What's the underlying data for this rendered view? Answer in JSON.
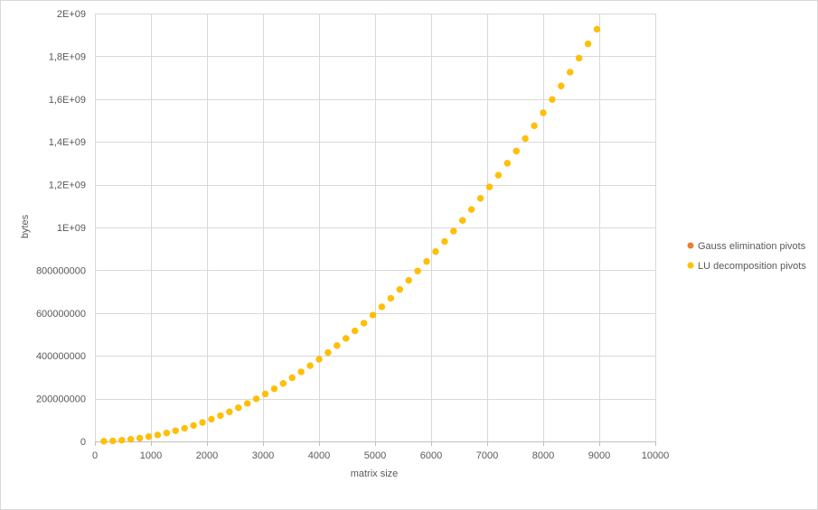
{
  "chart_data": {
    "type": "scatter",
    "title": "",
    "xlabel": "matrix size",
    "ylabel": "bytes",
    "xlim": [
      0,
      10000
    ],
    "ylim": [
      0,
      2000000000
    ],
    "x_ticks": [
      0,
      1000,
      2000,
      3000,
      4000,
      5000,
      6000,
      7000,
      8000,
      9000,
      10000
    ],
    "x_tick_labels": [
      "0",
      "1000",
      "2000",
      "3000",
      "4000",
      "5000",
      "6000",
      "7000",
      "8000",
      "9000",
      "10000"
    ],
    "y_ticks": [
      0,
      200000000,
      400000000,
      600000000,
      800000000,
      1000000000,
      1200000000,
      1400000000,
      1600000000,
      1800000000,
      2000000000
    ],
    "y_tick_labels": [
      "0",
      "200000000",
      "400000000",
      "600000000",
      "800000000",
      "1E+09",
      "1,2E+09",
      "1,4E+09",
      "1,6E+09",
      "1,8E+09",
      "2E+09"
    ],
    "grid": true,
    "legend_position": "right",
    "x": [
      160,
      320,
      480,
      640,
      800,
      960,
      1120,
      1280,
      1440,
      1600,
      1760,
      1920,
      2080,
      2240,
      2400,
      2560,
      2720,
      2880,
      3040,
      3200,
      3360,
      3520,
      3680,
      3840,
      4000,
      4160,
      4320,
      4480,
      4640,
      4800,
      4960,
      5120,
      5280,
      5440,
      5600,
      5760,
      5920,
      6080,
      6240,
      6400,
      6560,
      6720,
      6880,
      7040,
      7200,
      7360,
      7520,
      7680,
      7840,
      8000,
      8160,
      8320,
      8480,
      8640,
      8800,
      8960
    ],
    "series": [
      {
        "name": "Gauss elimination pivots",
        "color": "#ed7d31",
        "values": [
          614400,
          2457600,
          5529600,
          9830400,
          15360000,
          22118400,
          30105600,
          39321600,
          49766400,
          61440000,
          74342400,
          88473600,
          103833600,
          120422400,
          138240000,
          157286400,
          177561600,
          199065600,
          221798400,
          245760000,
          270950400,
          297369600,
          325017600,
          353894400,
          384000000,
          415334400,
          447897600,
          481689600,
          516710400,
          552960000,
          590438400,
          629145600,
          669081600,
          710246400,
          752640000,
          796262400,
          841113600,
          887193600,
          934502400,
          983040000,
          1032806400,
          1083801600,
          1136025600,
          1189478400,
          1244160000,
          1300070400,
          1357209600,
          1415577600,
          1475174400,
          1536000000,
          1598054400,
          1661337600,
          1725849600,
          1791590400,
          1858560000,
          1926758400
        ]
      },
      {
        "name": "LU decomposition pivots",
        "color": "#ffc000",
        "values": [
          614400,
          2457600,
          5529600,
          9830400,
          15360000,
          22118400,
          30105600,
          39321600,
          49766400,
          61440000,
          74342400,
          88473600,
          103833600,
          120422400,
          138240000,
          157286400,
          177561600,
          199065600,
          221798400,
          245760000,
          270950400,
          297369600,
          325017600,
          353894400,
          384000000,
          415334400,
          447897600,
          481689600,
          516710400,
          552960000,
          590438400,
          629145600,
          669081600,
          710246400,
          752640000,
          796262400,
          841113600,
          887193600,
          934502400,
          983040000,
          1032806400,
          1083801600,
          1136025600,
          1189478400,
          1244160000,
          1300070400,
          1357209600,
          1415577600,
          1475174400,
          1536000000,
          1598054400,
          1661337600,
          1725849600,
          1791590400,
          1858560000,
          1926758400
        ]
      }
    ]
  }
}
